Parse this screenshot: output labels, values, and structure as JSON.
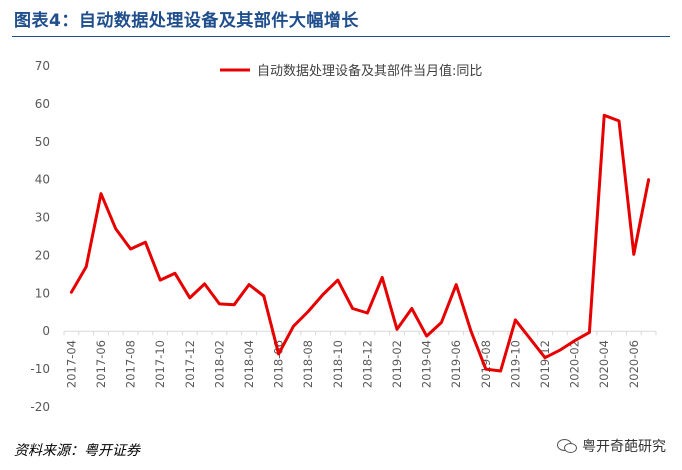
{
  "header": {
    "title": "图表4：自动数据处理设备及其部件大幅增长"
  },
  "footer": {
    "source": "资料来源：粤开证券",
    "watermark": "粤开奇葩研究"
  },
  "colors": {
    "title": "#1f4e8c",
    "line": "#e60000",
    "axis": "#d9d9d9",
    "tick_text": "#595959"
  },
  "icons": {
    "watermark_icon": "wechat-icon"
  },
  "chart_data": {
    "type": "line",
    "title": "",
    "xlabel": "",
    "ylabel": "",
    "ylim": [
      -20,
      70
    ],
    "yticks": [
      -20,
      -10,
      0,
      10,
      20,
      30,
      40,
      50,
      60,
      70
    ],
    "grid": false,
    "legend_position": "top-center",
    "x": [
      "2017-04",
      "2017-05",
      "2017-06",
      "2017-07",
      "2017-08",
      "2017-09",
      "2017-10",
      "2017-11",
      "2017-12",
      "2018-01",
      "2018-02",
      "2018-03",
      "2018-04",
      "2018-05",
      "2018-06",
      "2018-07",
      "2018-08",
      "2018-09",
      "2018-10",
      "2018-11",
      "2018-12",
      "2019-01",
      "2019-02",
      "2019-03",
      "2019-04",
      "2019-05",
      "2019-06",
      "2019-07",
      "2019-08",
      "2019-09",
      "2019-10",
      "2019-11",
      "2019-12",
      "2020-01",
      "2020-02",
      "2020-03",
      "2020-04",
      "2020-05",
      "2020-06",
      "2020-07"
    ],
    "x_tick_labels": [
      "2017-04",
      "2017-06",
      "2017-08",
      "2017-10",
      "2017-12",
      "2018-02",
      "2018-04",
      "2018-06",
      "2018-08",
      "2018-10",
      "2018-12",
      "2019-02",
      "2019-04",
      "2019-06",
      "2019-08",
      "2019-10",
      "2019-12",
      "2020-02",
      "2020-04",
      "2020-06"
    ],
    "series": [
      {
        "name": "自动数据处理设备及其部件当月值:同比",
        "color": "#e60000",
        "values": [
          10.3,
          17,
          36.3,
          27,
          21.7,
          23.5,
          13.5,
          15.3,
          8.8,
          12.5,
          7.2,
          7,
          12.3,
          9.3,
          -6,
          1.3,
          5.2,
          9.7,
          13.5,
          6,
          4.8,
          14.2,
          0.5,
          6,
          -1.3,
          2.3,
          12.3,
          0,
          -10,
          -10.5,
          3,
          -2,
          -7,
          -5,
          -2.5,
          -0.3,
          57,
          55.5,
          20.3,
          40
        ]
      }
    ]
  }
}
